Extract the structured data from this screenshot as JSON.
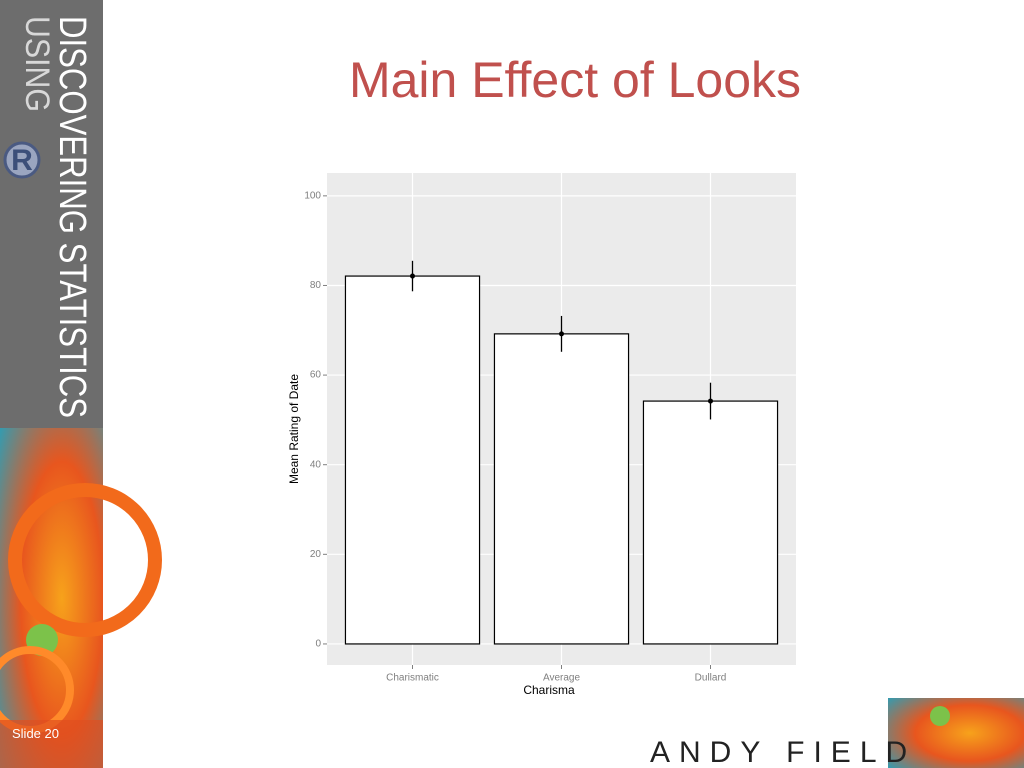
{
  "slide": {
    "brand_main": "DISCOVERING STATISTICS",
    "brand_sub": "USING",
    "logo": "R",
    "slide_number": "Slide 20",
    "author": "ANDY FIELD"
  },
  "chart_data": {
    "type": "bar",
    "title": "Main Effect of Looks",
    "categories": [
      "Charismatic",
      "Average",
      "Dullard"
    ],
    "values": [
      82.1,
      69.2,
      54.2
    ],
    "errors": [
      3.4,
      4.0,
      4.1
    ],
    "color": "#ffffff",
    "x_label": "Charisma",
    "y_label": "Mean Rating of Date",
    "ylim": [
      -4.7,
      105.1
    ],
    "yticks": [
      0,
      20,
      40,
      60,
      80,
      100
    ],
    "grid": true
  }
}
